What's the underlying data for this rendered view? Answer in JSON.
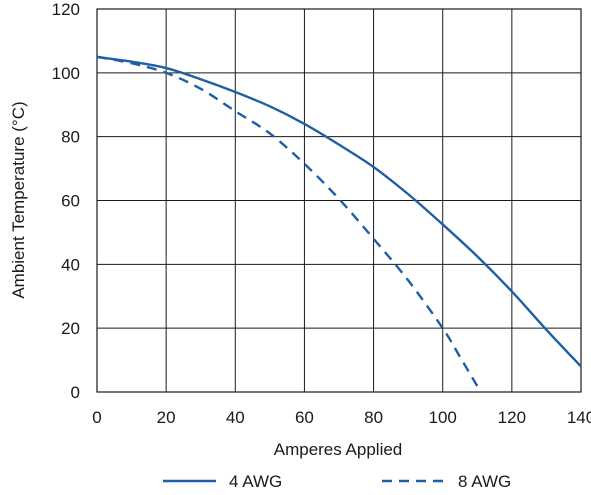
{
  "chart_data": {
    "type": "line",
    "title": "",
    "xlabel": "Amperes Applied",
    "ylabel": "Ambient Temperature (°C)",
    "xlim": [
      0,
      140
    ],
    "ylim": [
      0,
      120
    ],
    "x_ticks": [
      "0",
      "20",
      "40",
      "60",
      "80",
      "100",
      "120",
      "140"
    ],
    "y_ticks": [
      "0",
      "20",
      "40",
      "60",
      "80",
      "100",
      "120"
    ],
    "grid": true,
    "legend_position": "bottom",
    "series": [
      {
        "name": "4 AWG",
        "style": "solid",
        "color": "#1f5fa3",
        "x": [
          0,
          10,
          20,
          30,
          40,
          50,
          60,
          70,
          80,
          90,
          100,
          110,
          120,
          130,
          140
        ],
        "y": [
          105,
          103.5,
          101.5,
          98,
          94,
          89.5,
          84,
          77.5,
          70.5,
          62,
          52.5,
          42.5,
          31.5,
          19.5,
          8
        ]
      },
      {
        "name": "8 AWG",
        "style": "dashed",
        "color": "#1f5fa3",
        "x": [
          0,
          10,
          20,
          30,
          40,
          50,
          60,
          70,
          80,
          90,
          100,
          105,
          111
        ],
        "y": [
          105,
          103,
          100,
          95,
          88,
          81,
          71.5,
          60.5,
          48,
          35,
          20,
          11,
          0
        ]
      }
    ]
  }
}
